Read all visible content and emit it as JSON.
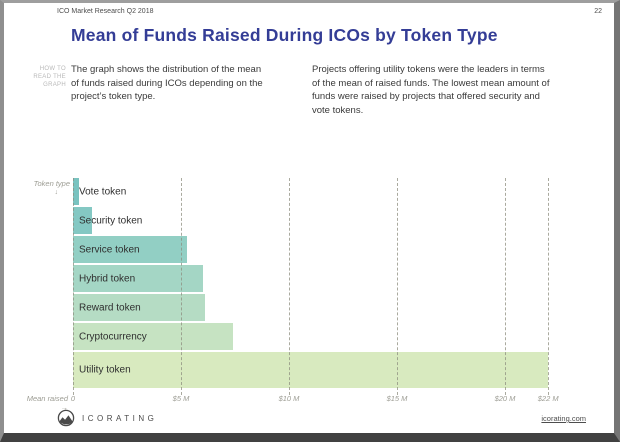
{
  "header": {
    "report_title": "ICO Market Research Q2 2018",
    "page_number": "22"
  },
  "title": "Mean of Funds Raised During ICOs by Token Type",
  "how_to_read": {
    "label": "HOW TO READ THE GRAPH",
    "left_text": "The graph shows the distribution of the mean of funds raised during ICOs depending on the project’s token type.",
    "right_text": "Projects offering utility tokens were the leaders in terms of the mean of raised funds. The lowest mean amount of funds were raised by projects that offered security and vote tokens."
  },
  "chart_data": {
    "type": "bar",
    "orientation": "horizontal",
    "title": "Mean of Funds Raised During ICOs by Token Type",
    "ylabel": "Token type",
    "ylabel_arrow": "↓",
    "xlabel": "Mean raised",
    "xlabel_arrow": "→",
    "unit": "USD millions",
    "categories": [
      "Vote token",
      "Security token",
      "Service token",
      "Hybrid token",
      "Reward token",
      "Cryptocurrency",
      "Utility token"
    ],
    "values": [
      0.3,
      0.9,
      5.3,
      6.0,
      6.1,
      7.4,
      22.0
    ],
    "bar_colors": [
      "#79c3c0",
      "#84c8c3",
      "#92cfc4",
      "#a4d6c5",
      "#b5dcc4",
      "#c6e3c2",
      "#d8eabf"
    ],
    "x_ticks": [
      {
        "value": 0,
        "label": "0"
      },
      {
        "value": 5,
        "label": "$5 M"
      },
      {
        "value": 10,
        "label": "$10 M"
      },
      {
        "value": 15,
        "label": "$15 M"
      },
      {
        "value": 20,
        "label": "$20 M"
      },
      {
        "value": 22,
        "label": "$22 M"
      }
    ],
    "xlim": [
      0,
      24.6
    ],
    "grid": "dotted-vertical",
    "legend": "none"
  },
  "footer": {
    "brand": "ICORATING",
    "logo_icon": "chart-line-circle-icon",
    "link": "icorating.com"
  }
}
